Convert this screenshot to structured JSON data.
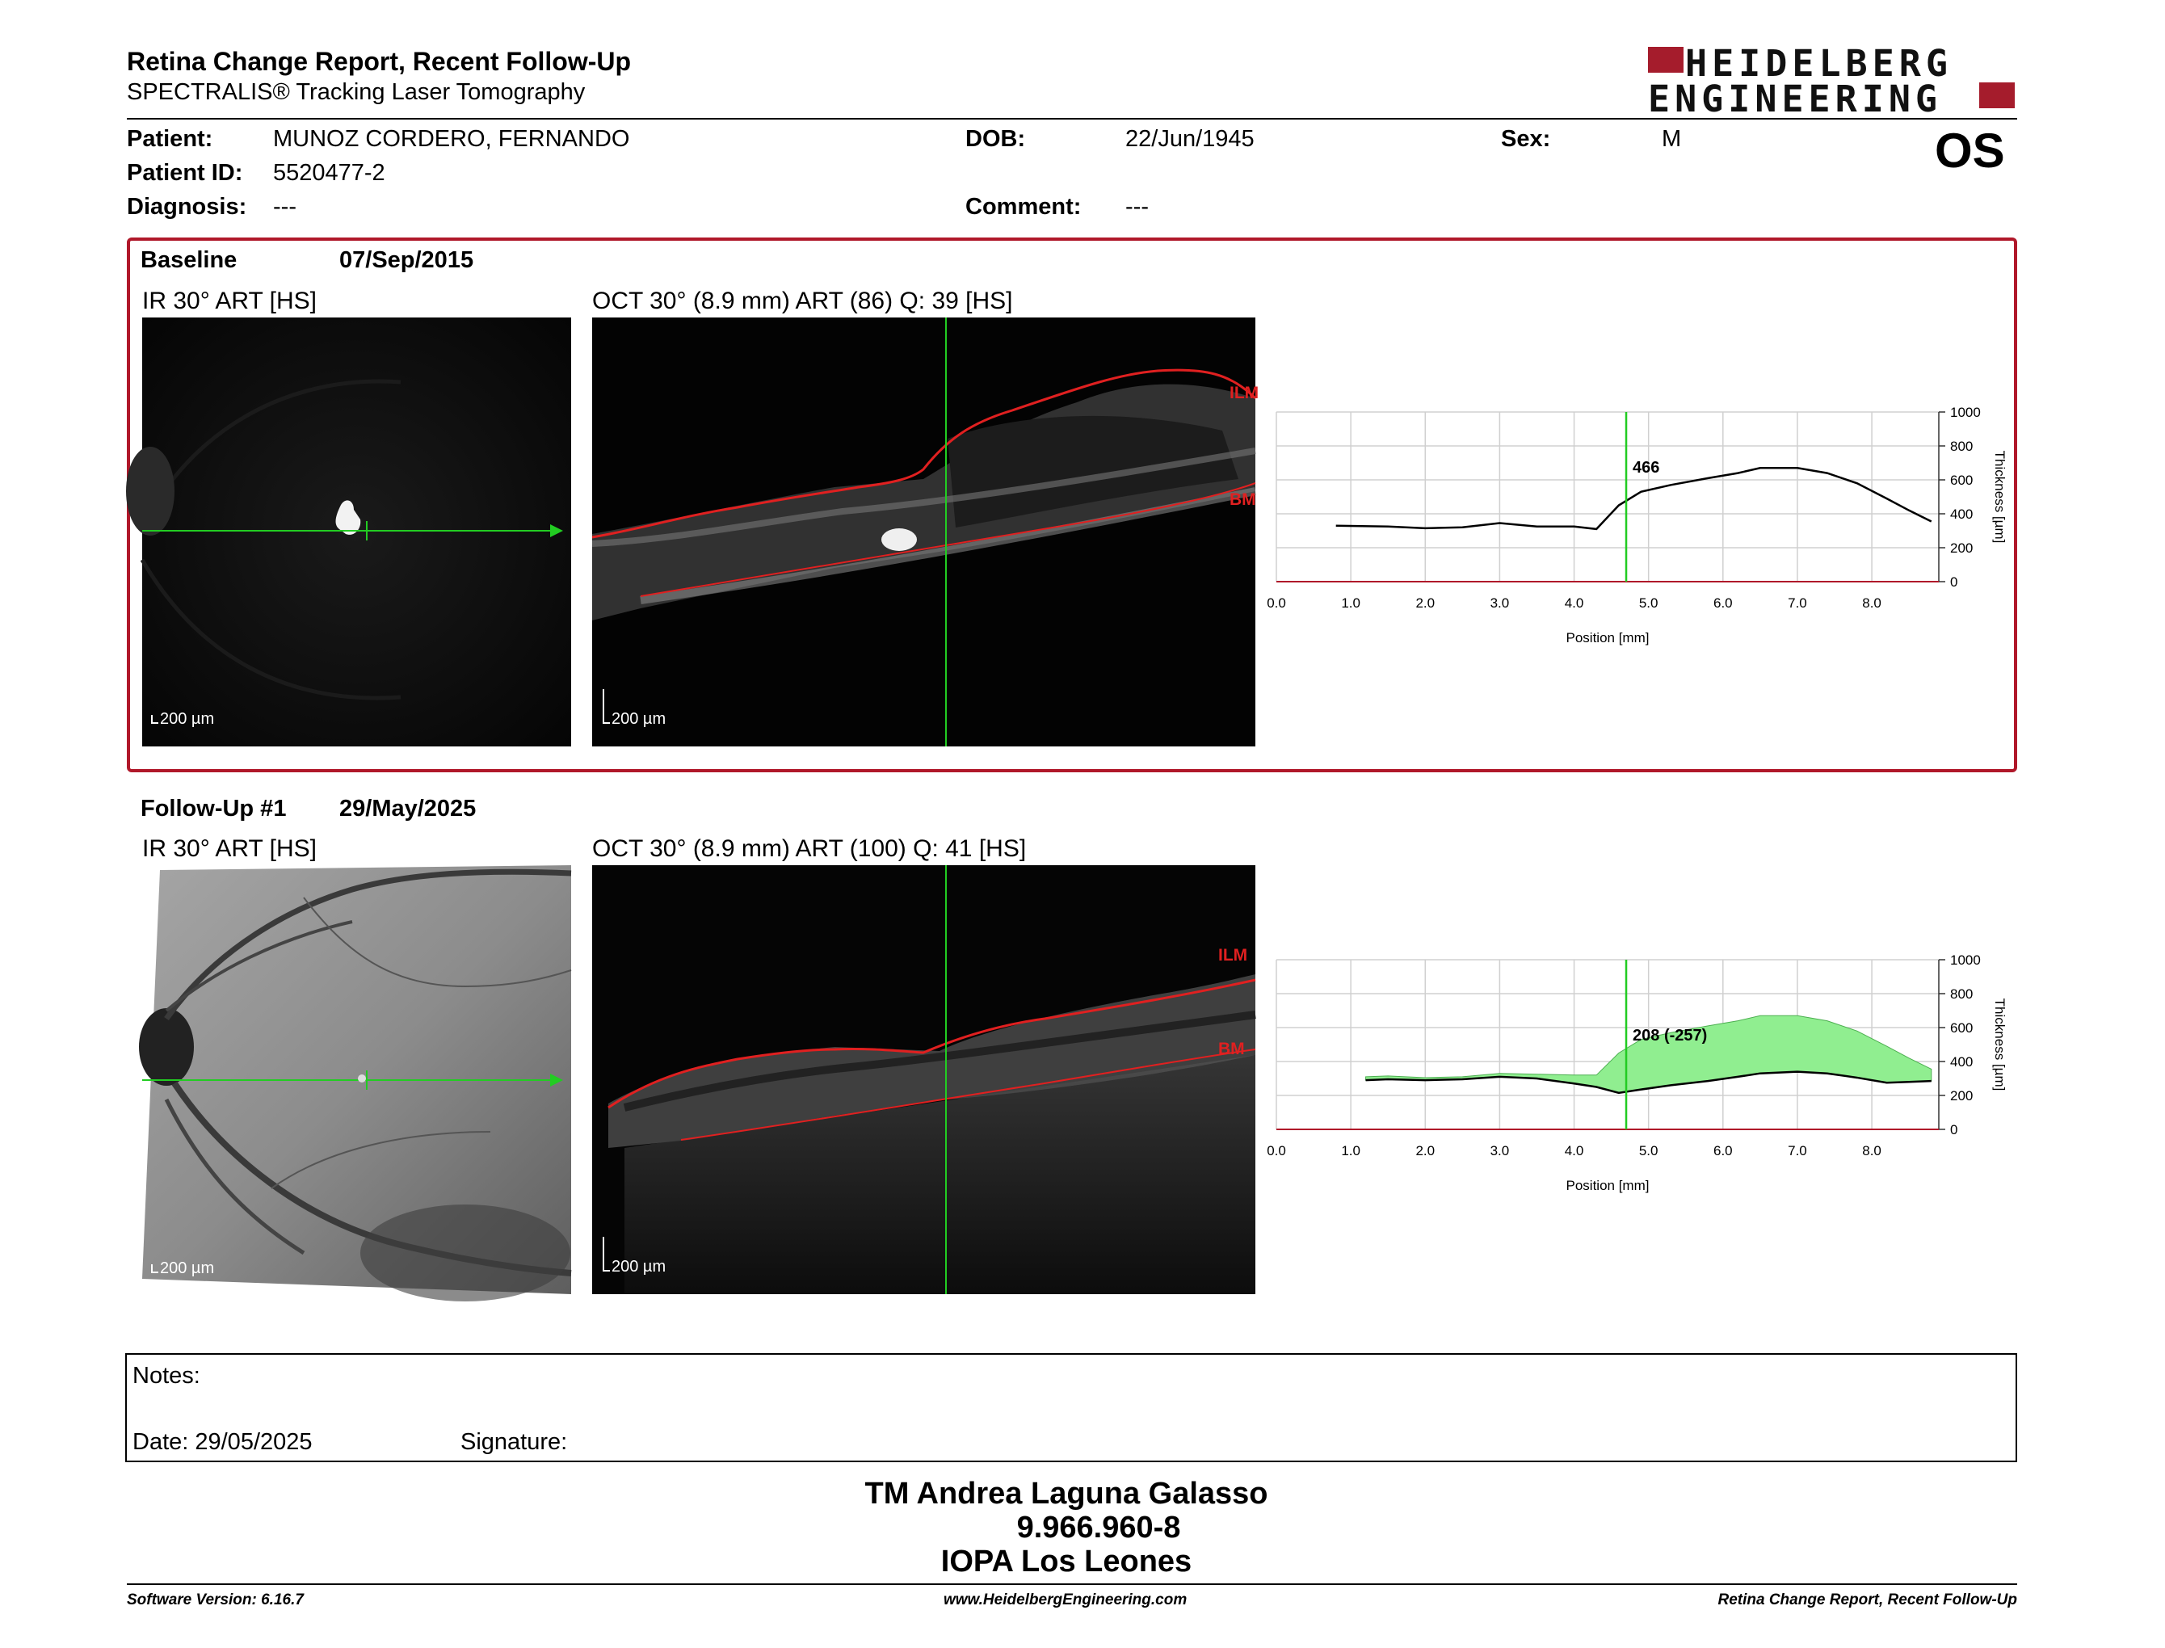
{
  "header": {
    "title": "Retina Change Report, Recent Follow-Up",
    "subtitle": "SPECTRALIS® Tracking Laser Tomography",
    "logo_line1": "HEIDELBERG",
    "logo_line2": "ENGINEERING",
    "eye": "OS"
  },
  "patient": {
    "name_label": "Patient:",
    "name": "MUNOZ CORDERO, FERNANDO",
    "id_label": "Patient ID:",
    "id": "5520477-2",
    "diagnosis_label": "Diagnosis:",
    "diagnosis": "---",
    "dob_label": "DOB:",
    "dob": "22/Jun/1945",
    "comment_label": "Comment:",
    "comment": "---",
    "sex_label": "Sex:",
    "sex": "M"
  },
  "baseline": {
    "label": "Baseline",
    "date": "07/Sep/2015",
    "ir_label": "IR 30° ART [HS]",
    "oct_label": "OCT 30° (8.9 mm) ART (86) Q: 39 [HS]",
    "scale_ir": "200 µm",
    "scale_oct": "200 µm",
    "ilm": "ILM",
    "bm": "BM"
  },
  "followup": {
    "label": "Follow-Up #1",
    "date": "29/May/2025",
    "ir_label": "IR 30° ART [HS]",
    "oct_label": "OCT 30° (8.9 mm) ART (100) Q: 41 [HS]",
    "scale_ir": "200 µm",
    "scale_oct": "200 µm",
    "ilm": "ILM",
    "bm": "BM"
  },
  "chart_data": [
    {
      "type": "line",
      "xlabel": "Position [mm]",
      "ylabel": "Thickness [µm]",
      "xlim": [
        0,
        8.9
      ],
      "ylim": [
        0,
        1000
      ],
      "x_ticks": [
        "0.0",
        "1.0",
        "2.0",
        "3.0",
        "4.0",
        "5.0",
        "6.0",
        "7.0",
        "8.0"
      ],
      "y_ticks": [
        "0",
        "200",
        "400",
        "600",
        "800",
        "1000"
      ],
      "cursor_x": 4.7,
      "cursor_label": "466",
      "series": [
        {
          "x": [
            0.8,
            1.5,
            2.0,
            2.5,
            3.0,
            3.5,
            4.0,
            4.3,
            4.6,
            4.9,
            5.3,
            5.8,
            6.2,
            6.5,
            7.0,
            7.4,
            7.8,
            8.2,
            8.5,
            8.8
          ],
          "y": [
            330,
            325,
            315,
            320,
            345,
            325,
            325,
            310,
            450,
            530,
            570,
            610,
            640,
            670,
            670,
            640,
            580,
            490,
            420,
            355
          ]
        }
      ]
    },
    {
      "type": "area",
      "xlabel": "Position [mm]",
      "ylabel": "Thickness [µm]",
      "xlim": [
        0,
        8.9
      ],
      "ylim": [
        0,
        1000
      ],
      "x_ticks": [
        "0.0",
        "1.0",
        "2.0",
        "3.0",
        "4.0",
        "5.0",
        "6.0",
        "7.0",
        "8.0"
      ],
      "y_ticks": [
        "0",
        "200",
        "400",
        "600",
        "800",
        "1000"
      ],
      "cursor_x": 4.7,
      "cursor_label": "208 (-257)",
      "series": [
        {
          "x": [
            1.2,
            1.5,
            2.0,
            2.5,
            3.0,
            3.5,
            4.0,
            4.3,
            4.6,
            4.9,
            5.3,
            5.8,
            6.2,
            6.5,
            7.0,
            7.4,
            7.8,
            8.2,
            8.5,
            8.8
          ],
          "y": [
            310,
            315,
            305,
            310,
            330,
            325,
            320,
            320,
            450,
            530,
            570,
            610,
            640,
            670,
            670,
            640,
            580,
            490,
            420,
            355
          ]
        },
        {
          "x": [
            1.2,
            1.5,
            2.0,
            2.5,
            3.0,
            3.5,
            4.0,
            4.3,
            4.6,
            4.9,
            5.3,
            5.8,
            6.2,
            6.5,
            7.0,
            7.4,
            7.8,
            8.2,
            8.5,
            8.8
          ],
          "y": [
            290,
            295,
            290,
            295,
            310,
            300,
            270,
            250,
            215,
            235,
            260,
            285,
            310,
            330,
            340,
            330,
            305,
            275,
            280,
            285
          ]
        }
      ]
    }
  ],
  "notes": {
    "notes_label": "Notes:",
    "date_label": "Date: 29/05/2025",
    "signature_label": "Signature:"
  },
  "signer": {
    "name": "TM Andrea Laguna Galasso",
    "id": "9.966.960-8",
    "org": "IOPA Los Leones"
  },
  "footer": {
    "version": "Software Version: 6.16.7",
    "url": "www.HeidelbergEngineering.com",
    "report": "Retina Change Report, Recent Follow-Up"
  },
  "colors": {
    "brand_red": "#a51c2c",
    "cursor_green": "#22cc22",
    "layer_red": "#e02020",
    "diff_green": "#90ee90"
  }
}
